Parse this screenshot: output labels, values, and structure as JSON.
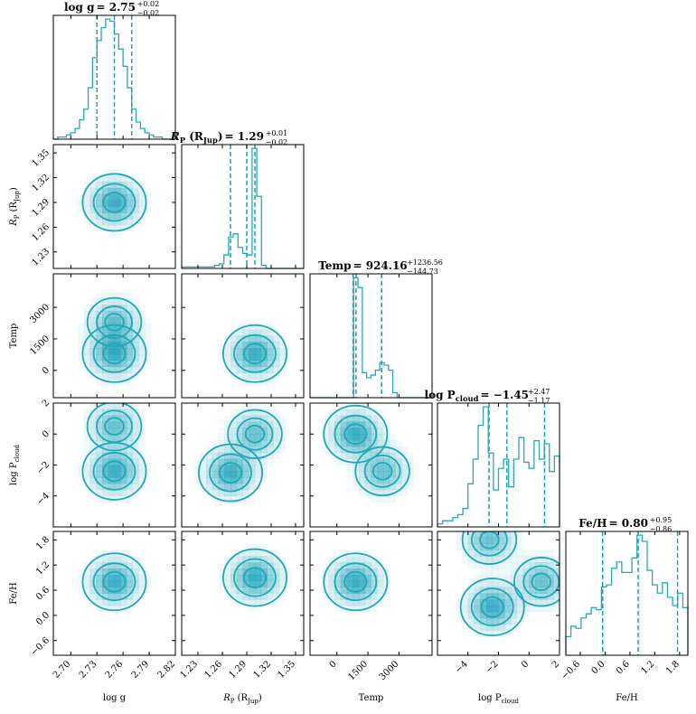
{
  "colors": {
    "accent": "#22a7b5",
    "fill": "#17a0b8"
  },
  "params": [
    {
      "key": "logg",
      "label": "log g",
      "range": [
        2.68,
        2.82
      ],
      "ticks": [
        "2.70",
        "2.73",
        "2.76",
        "2.79",
        "2.82"
      ],
      "tickvals": [
        2.7,
        2.73,
        2.76,
        2.79,
        2.82
      ]
    },
    {
      "key": "rp",
      "label": "R_P (R_Jup)",
      "range": [
        1.21,
        1.36
      ],
      "ticks": [
        "1.23",
        "1.26",
        "1.29",
        "1.32",
        "1.35"
      ],
      "tickvals": [
        1.23,
        1.26,
        1.29,
        1.32,
        1.35
      ]
    },
    {
      "key": "temp",
      "label": "Temp",
      "range": [
        -1300,
        4600
      ],
      "ticks": [
        "0",
        "1500",
        "3000"
      ],
      "tickvals": [
        0,
        1500,
        3000
      ]
    },
    {
      "key": "logp",
      "label": "log P_cloud",
      "range": [
        -6,
        2
      ],
      "ticks": [
        "-4",
        "-2",
        "0",
        "2"
      ],
      "tickvals": [
        -4,
        -2,
        0,
        2
      ]
    },
    {
      "key": "feh",
      "label": "Fe/H",
      "range": [
        -0.95,
        2.0
      ],
      "ticks": [
        "-0.6",
        "0.0",
        "0.6",
        "1.2",
        "1.8"
      ],
      "tickvals": [
        -0.6,
        0.0,
        0.6,
        1.2,
        1.8
      ]
    }
  ],
  "titles": [
    {
      "name": "log g",
      "value": "2.75",
      "plus": "+0.02",
      "minus": "−0.02"
    },
    {
      "name": "R_P (R_Jup)",
      "value": "1.29",
      "plus": "+0.01",
      "minus": "−0.02"
    },
    {
      "name": "Temp",
      "value": "924.16",
      "plus": "+1236.56",
      "minus": "−144.73"
    },
    {
      "name": "log P_cloud",
      "value": "−1.45",
      "plus": "+2.47",
      "minus": "−1.17"
    },
    {
      "name": "Fe/H",
      "value": "0.80",
      "plus": "+0.95",
      "minus": "−0.86"
    }
  ],
  "chart_data": {
    "type": "corner",
    "parameters": [
      "log g",
      "R_P (R_Jup)",
      "Temp",
      "log P_cloud",
      "Fe/H"
    ],
    "quantiles": {
      "logg": [
        2.73,
        2.75,
        2.77
      ],
      "rp": [
        1.27,
        1.29,
        1.3
      ],
      "temp": [
        779.43,
        924.16,
        2160.72
      ],
      "logp": [
        -2.62,
        -1.45,
        1.02
      ],
      "feh": [
        -0.06,
        0.8,
        1.75
      ]
    },
    "histograms": {
      "logg": {
        "edges_start": 2.68,
        "edges_end": 2.82,
        "counts": [
          0,
          1,
          1,
          2,
          3,
          5,
          9,
          14,
          24,
          38,
          46,
          52,
          56,
          55,
          49,
          42,
          34,
          24,
          14,
          8,
          5,
          3,
          2,
          1,
          1,
          0,
          0,
          0
        ]
      },
      "rp": {
        "edges_start": 1.21,
        "edges_end": 1.36,
        "counts": [
          1,
          1,
          1,
          1,
          1,
          1,
          1,
          2,
          3,
          9,
          21,
          23,
          14,
          10,
          9,
          80,
          48,
          2,
          0,
          0,
          0,
          0,
          0,
          0,
          0,
          0
        ]
      },
      "temp": {
        "edges_start": -1300,
        "edges_end": 4600,
        "counts": [
          0,
          0,
          0,
          0,
          0,
          0,
          0,
          0,
          0,
          0,
          48,
          44,
          10,
          8,
          9,
          11,
          14,
          13,
          11,
          2,
          0,
          0,
          0,
          0,
          0,
          0,
          0,
          0
        ]
      },
      "logp": {
        "edges_start": -6,
        "edges_end": 2,
        "counts": [
          1,
          2,
          2,
          3,
          4,
          6,
          14,
          22,
          33,
          39,
          24,
          12,
          19,
          22,
          13,
          22,
          29,
          21,
          19,
          28,
          22,
          27,
          18,
          23
        ]
      },
      "feh": {
        "edges_start": -0.95,
        "edges_end": 2.0,
        "counts": [
          9,
          14,
          13,
          18,
          20,
          23,
          22,
          33,
          34,
          42,
          45,
          40,
          40,
          47,
          58,
          55,
          41,
          34,
          30,
          35,
          28,
          24,
          30,
          23
        ]
      }
    },
    "modes_2d": [
      {
        "x": "logg",
        "y": "rp",
        "peaks": [
          [
            2.75,
            1.29
          ]
        ]
      },
      {
        "x": "logg",
        "y": "temp",
        "peaks": [
          [
            2.75,
            800
          ],
          [
            2.75,
            2300
          ]
        ]
      },
      {
        "x": "rp",
        "y": "temp",
        "peaks": [
          [
            1.3,
            800
          ]
        ]
      },
      {
        "x": "logg",
        "y": "logp",
        "peaks": [
          [
            2.75,
            -2.4
          ],
          [
            2.75,
            0.5
          ]
        ]
      },
      {
        "x": "rp",
        "y": "logp",
        "peaks": [
          [
            1.27,
            -2.5
          ],
          [
            1.3,
            0
          ]
        ]
      },
      {
        "x": "temp",
        "y": "logp",
        "peaks": [
          [
            900,
            0
          ],
          [
            2200,
            -2.4
          ]
        ]
      },
      {
        "x": "logg",
        "y": "feh",
        "peaks": [
          [
            2.75,
            0.8
          ]
        ]
      },
      {
        "x": "rp",
        "y": "feh",
        "peaks": [
          [
            1.3,
            0.9
          ]
        ]
      },
      {
        "x": "temp",
        "y": "feh",
        "peaks": [
          [
            900,
            0.8
          ]
        ]
      },
      {
        "x": "logp",
        "y": "feh",
        "peaks": [
          [
            -2.4,
            0.2
          ],
          [
            0.8,
            0.8
          ],
          [
            -2.6,
            1.8
          ]
        ]
      }
    ]
  }
}
